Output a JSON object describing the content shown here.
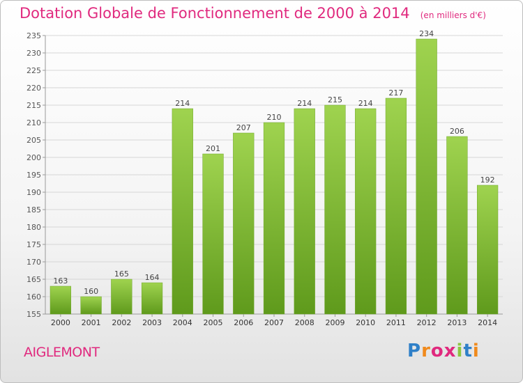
{
  "chart_data": {
    "type": "bar",
    "title": "Dotation Globale de Fonctionnement de 2000 à 2014",
    "subtitle": "(en milliers d'€)",
    "categories": [
      "2000",
      "2001",
      "2002",
      "2003",
      "2004",
      "2005",
      "2006",
      "2007",
      "2008",
      "2009",
      "2010",
      "2011",
      "2012",
      "2013",
      "2014"
    ],
    "values": [
      163,
      160,
      165,
      164,
      214,
      201,
      207,
      210,
      214,
      215,
      214,
      217,
      234,
      206,
      192
    ],
    "ylim": [
      155,
      235
    ],
    "yticks": [
      155,
      160,
      165,
      170,
      175,
      180,
      185,
      190,
      195,
      200,
      205,
      210,
      215,
      220,
      225,
      230,
      235
    ],
    "grid": true,
    "bar_color": "#7cb82f"
  },
  "place_name": "AIGLEMONT",
  "brand": {
    "letters": [
      "P",
      "r",
      "o",
      "x",
      "i",
      "t",
      "i"
    ]
  }
}
